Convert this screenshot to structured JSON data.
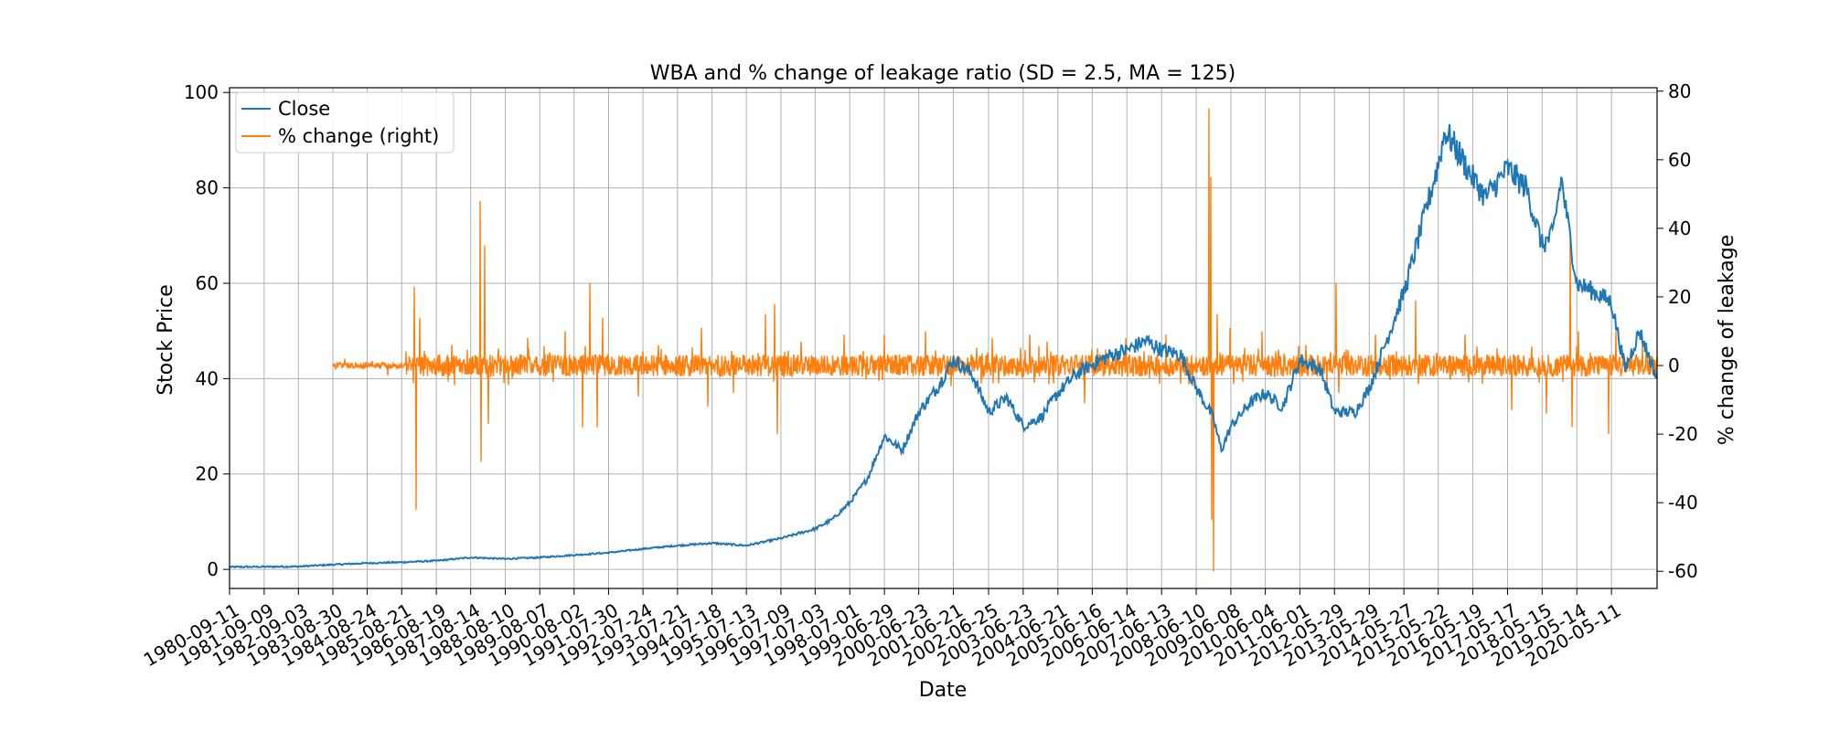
{
  "chart_data": {
    "type": "line",
    "title": "WBA and % change of leakage ratio (SD = 2.5, MA = 125)",
    "xlabel": "Date",
    "ylabel": "Stock Price",
    "y2label": "% change of leakage",
    "xlim": [
      "1980-09-11",
      "2021-09-01"
    ],
    "ylim": [
      -4,
      101
    ],
    "y2lim": [
      -65,
      81
    ],
    "yticks": [
      0,
      20,
      40,
      60,
      80,
      100
    ],
    "y2ticks": [
      -60,
      -40,
      -20,
      0,
      20,
      40,
      60,
      80
    ],
    "xtick_labels": [
      "1980-09-11",
      "1981-09-09",
      "1982-09-03",
      "1983-08-30",
      "1984-08-24",
      "1985-08-21",
      "1986-08-19",
      "1987-08-14",
      "1988-08-10",
      "1989-08-07",
      "1990-08-02",
      "1991-07-30",
      "1992-07-24",
      "1993-07-21",
      "1994-07-18",
      "1995-07-13",
      "1996-07-09",
      "1997-07-03",
      "1998-07-01",
      "1999-06-29",
      "2000-06-23",
      "2001-06-21",
      "2002-06-25",
      "2003-06-23",
      "2004-06-21",
      "2005-06-16",
      "2006-06-14",
      "2007-06-13",
      "2008-06-10",
      "2009-06-08",
      "2010-06-04",
      "2011-06-01",
      "2012-05-29",
      "2013-05-29",
      "2014-05-27",
      "2015-05-22",
      "2016-05-19",
      "2017-05-17",
      "2018-05-15",
      "2019-05-14",
      "2020-05-11"
    ],
    "grid": true,
    "legend_position": "top-left",
    "series": [
      {
        "name": "Close",
        "axis": "left",
        "color": "#1f77b4",
        "x": [
          "1980-09-11",
          "1982-09-03",
          "1983-08-30",
          "1984-08-24",
          "1985-08-21",
          "1986-08-19",
          "1987-08-14",
          "1988-08-10",
          "1989-08-07",
          "1990-08-02",
          "1991-07-30",
          "1992-07-24",
          "1993-07-21",
          "1994-07-18",
          "1995-07-13",
          "1996-07-09",
          "1997-07-03",
          "1998-01-01",
          "1998-07-01",
          "1999-01-01",
          "1999-06-29",
          "2000-01-01",
          "2000-06-23",
          "2001-01-01",
          "2001-06-21",
          "2002-01-01",
          "2002-06-25",
          "2003-01-01",
          "2003-06-23",
          "2004-01-01",
          "2004-06-21",
          "2005-01-01",
          "2005-06-16",
          "2006-01-01",
          "2006-06-14",
          "2007-01-01",
          "2007-06-13",
          "2008-01-01",
          "2008-06-10",
          "2008-12-01",
          "2009-03-01",
          "2009-06-08",
          "2010-01-01",
          "2010-06-04",
          "2010-12-01",
          "2011-06-01",
          "2012-01-01",
          "2012-05-29",
          "2013-01-01",
          "2013-05-29",
          "2014-01-01",
          "2014-05-27",
          "2014-12-01",
          "2015-05-22",
          "2015-08-01",
          "2016-01-01",
          "2016-05-19",
          "2016-10-01",
          "2017-05-17",
          "2017-12-01",
          "2018-05-15",
          "2018-09-01",
          "2018-12-01",
          "2019-05-14",
          "2019-12-01",
          "2020-05-11",
          "2020-10-01",
          "2021-03-01",
          "2021-09-01"
        ],
        "values": [
          0.5,
          0.6,
          1.0,
          1.3,
          1.5,
          1.8,
          2.5,
          2.2,
          2.5,
          3.0,
          3.5,
          4.3,
          5.0,
          5.5,
          5.0,
          6.5,
          8.5,
          10.5,
          14.0,
          19.0,
          28.0,
          25.0,
          33.0,
          38.0,
          44.0,
          41.0,
          33.0,
          36.0,
          30.0,
          32.0,
          37.0,
          41.0,
          43.0,
          45.0,
          46.0,
          48.0,
          46.0,
          45.0,
          38.0,
          32.0,
          25.0,
          30.0,
          35.0,
          37.0,
          34.0,
          44.0,
          42.0,
          33.0,
          33.0,
          38.0,
          50.0,
          58.0,
          72.0,
          85.0,
          92.0,
          87.0,
          82.0,
          78.0,
          84.0,
          80.0,
          68.0,
          70.0,
          82.0,
          60.0,
          58.0,
          56.0,
          42.0,
          50.0,
          40.0
        ]
      },
      {
        "name": "% change (right)",
        "axis": "right",
        "color": "#ff7f0e",
        "baseline": 0,
        "start": "1983-08-30",
        "spikes": [
          {
            "x": "1984-01-01",
            "value": 2
          },
          {
            "x": "1985-04-01",
            "value": -3
          },
          {
            "x": "1986-01-02",
            "value": 23
          },
          {
            "x": "1986-01-20",
            "value": -42
          },
          {
            "x": "1986-03-01",
            "value": 14
          },
          {
            "x": "1987-02-01",
            "value": 6
          },
          {
            "x": "1987-11-20",
            "value": 48
          },
          {
            "x": "1987-12-05",
            "value": -28
          },
          {
            "x": "1988-01-10",
            "value": 35
          },
          {
            "x": "1988-02-15",
            "value": -17
          },
          {
            "x": "1988-06-01",
            "value": 5
          },
          {
            "x": "1989-04-01",
            "value": 8
          },
          {
            "x": "1990-05-01",
            "value": 10
          },
          {
            "x": "1990-11-01",
            "value": -18
          },
          {
            "x": "1991-01-15",
            "value": 24
          },
          {
            "x": "1991-04-01",
            "value": -18
          },
          {
            "x": "1991-06-01",
            "value": 14
          },
          {
            "x": "1992-06-01",
            "value": -9
          },
          {
            "x": "1993-01-01",
            "value": 6
          },
          {
            "x": "1994-04-01",
            "value": 11
          },
          {
            "x": "1994-06-01",
            "value": -12
          },
          {
            "x": "1995-03-01",
            "value": -8
          },
          {
            "x": "1996-02-01",
            "value": 15
          },
          {
            "x": "1996-05-01",
            "value": 18
          },
          {
            "x": "1996-06-01",
            "value": -20
          },
          {
            "x": "1997-02-01",
            "value": 7
          },
          {
            "x": "1998-05-01",
            "value": 9
          },
          {
            "x": "1999-07-01",
            "value": 9
          },
          {
            "x": "2000-09-01",
            "value": 10
          },
          {
            "x": "2001-06-01",
            "value": -6
          },
          {
            "x": "2002-08-01",
            "value": 8
          },
          {
            "x": "2003-09-01",
            "value": 9
          },
          {
            "x": "2004-03-01",
            "value": 7
          },
          {
            "x": "2005-04-01",
            "value": -11
          },
          {
            "x": "2006-06-01",
            "value": 8
          },
          {
            "x": "2007-08-01",
            "value": 9
          },
          {
            "x": "2008-05-01",
            "value": -6
          },
          {
            "x": "2008-10-20",
            "value": 75
          },
          {
            "x": "2008-11-05",
            "value": 55
          },
          {
            "x": "2008-11-20",
            "value": -45
          },
          {
            "x": "2008-12-10",
            "value": -60
          },
          {
            "x": "2009-01-15",
            "value": 15
          },
          {
            "x": "2009-06-01",
            "value": 11
          },
          {
            "x": "2010-05-01",
            "value": 10
          },
          {
            "x": "2011-08-01",
            "value": 6
          },
          {
            "x": "2012-06-15",
            "value": 24
          },
          {
            "x": "2012-07-15",
            "value": -8
          },
          {
            "x": "2013-08-01",
            "value": 9
          },
          {
            "x": "2014-10-01",
            "value": 19
          },
          {
            "x": "2016-03-01",
            "value": 9
          },
          {
            "x": "2017-07-01",
            "value": -13
          },
          {
            "x": "2018-07-01",
            "value": -14
          },
          {
            "x": "2019-03-01",
            "value": 40
          },
          {
            "x": "2019-03-20",
            "value": -18
          },
          {
            "x": "2019-06-01",
            "value": 10
          },
          {
            "x": "2020-04-15",
            "value": -20
          },
          {
            "x": "2020-07-01",
            "value": 10
          },
          {
            "x": "2021-04-01",
            "value": 6
          }
        ]
      }
    ]
  }
}
